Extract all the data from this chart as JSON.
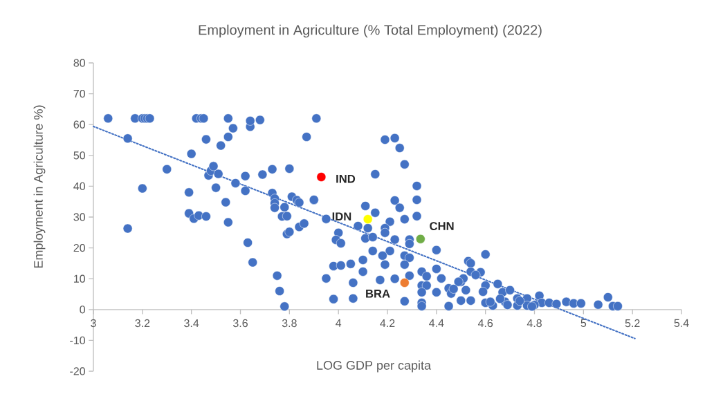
{
  "chart_data": {
    "type": "scatter",
    "title": "Employment in Agriculture (% Total Employment) (2022)",
    "xlabel": "LOG GDP per capita",
    "ylabel": "Employment in Agriculture %)",
    "xlim": [
      3,
      5.4
    ],
    "ylim": [
      -20,
      80
    ],
    "xticks": [
      3,
      3.2,
      3.4,
      3.6,
      3.8,
      4,
      4.2,
      4.4,
      4.6,
      4.8,
      5,
      5.2,
      5.4
    ],
    "yticks": [
      -20,
      -10,
      0,
      10,
      20,
      30,
      40,
      50,
      60,
      70,
      80
    ],
    "marker": "circle",
    "series": [
      {
        "color": "#4472c4",
        "x": [
          3.06,
          3.14,
          3.14,
          3.17,
          3.2,
          3.21,
          3.22,
          3.23,
          3.2,
          3.3,
          3.39,
          3.39,
          3.4,
          3.41,
          3.42,
          3.44,
          3.45,
          3.43,
          3.46,
          3.46,
          3.47,
          3.48,
          3.49,
          3.5,
          3.51,
          3.52,
          3.54,
          3.55,
          3.55,
          3.55,
          3.57,
          3.58,
          3.62,
          3.62,
          3.63,
          3.64,
          3.64,
          3.65,
          3.68,
          3.69,
          3.73,
          3.73,
          3.74,
          3.74,
          3.74,
          3.75,
          3.76,
          3.77,
          3.78,
          3.79,
          3.79,
          3.78,
          3.8,
          3.8,
          3.81,
          3.83,
          3.84,
          3.84,
          3.86,
          3.87,
          3.9,
          3.91,
          4.15,
          4.19,
          4.23,
          4.25,
          4.27,
          4.32,
          4.32,
          4.32,
          4.23,
          4.25,
          4.27,
          4.15,
          4.11,
          4.21,
          4.08,
          4.12,
          4.19,
          4.19,
          3.95,
          3.9,
          4.0,
          3.99,
          4.01,
          4.11,
          4.14,
          4.23,
          4.29,
          4.29,
          4.4,
          4.14,
          4.21,
          4.18,
          4.27,
          4.29,
          4.1,
          4.19,
          4.27,
          3.98,
          4.01,
          4.05,
          4.1,
          4.34,
          4.4,
          3.95,
          4.06,
          4.17,
          4.23,
          4.29,
          4.36,
          4.42,
          4.34,
          4.36,
          4.34,
          4.4,
          3.98,
          4.06,
          4.27,
          4.34,
          4.34,
          4.45,
          4.45,
          4.5,
          4.5,
          4.46,
          4.6,
          4.53,
          4.54,
          4.54,
          4.58,
          4.56,
          4.51,
          4.49,
          4.47,
          4.52,
          4.6,
          4.59,
          4.65,
          4.54,
          4.6,
          4.63,
          4.67,
          4.7,
          4.68,
          4.73,
          4.73,
          4.77,
          4.77,
          4.82,
          4.83,
          4.86,
          4.89,
          4.93,
          4.96,
          4.99,
          5.06,
          5.1,
          5.12,
          5.14,
          4.62,
          4.66,
          4.69,
          4.74,
          4.8,
          4.79
        ],
        "values": [
          62,
          55.5,
          26.3,
          62,
          62,
          62,
          62,
          62,
          39.3,
          45.5,
          31.2,
          38,
          50.5,
          29.5,
          62,
          62,
          62,
          30.5,
          30.2,
          55.2,
          43.5,
          45,
          46.5,
          39.5,
          44,
          53.2,
          34.8,
          56,
          62,
          28.3,
          58.8,
          41,
          38.5,
          43.3,
          21.7,
          59.3,
          61.2,
          15.3,
          61.5,
          43.8,
          45.5,
          37.8,
          36,
          34.5,
          33,
          11,
          6,
          30.2,
          33.2,
          30.3,
          24.5,
          1,
          45.7,
          25.2,
          36.6,
          35.5,
          34.7,
          26.8,
          27.9,
          56,
          35.5,
          62,
          43.9,
          55.1,
          55.6,
          52.4,
          47.1,
          40.1,
          35.6,
          30.3,
          35.4,
          33,
          29.3,
          31.4,
          33.6,
          28.5,
          27.1,
          26.4,
          26.4,
          24.9,
          29.4,
          35.6,
          24.9,
          22.6,
          21.5,
          23.1,
          23.5,
          22.7,
          22.7,
          21.3,
          19.3,
          19,
          19,
          17.5,
          17.5,
          16.8,
          16.1,
          14.6,
          14.6,
          14.1,
          14.3,
          14.8,
          12.3,
          12.3,
          13.2,
          10.1,
          8.7,
          9.6,
          10,
          11,
          10.8,
          10.1,
          7.8,
          7.8,
          5.6,
          5.6,
          3.4,
          3.6,
          2.7,
          2.2,
          1.1,
          1.1,
          6.9,
          2.9,
          9,
          5.2,
          17.9,
          15.7,
          15,
          12.3,
          12.1,
          11.2,
          10.1,
          9,
          6.7,
          6.3,
          7.8,
          5.8,
          8.3,
          2.9,
          2.2,
          1.3,
          5.6,
          6.3,
          2.5,
          3.6,
          1.3,
          3.6,
          1.3,
          4.5,
          2.2,
          2.2,
          1.8,
          2.5,
          2,
          2,
          1.6,
          4,
          1.1,
          1.1,
          2.5,
          3.5,
          1.5,
          2.8,
          1.5,
          1
        ]
      },
      {
        "name": "IND",
        "color": "#ff0000",
        "x": [
          3.93
        ],
        "values": [
          43.0
        ]
      },
      {
        "name": "IDN",
        "color": "#ffff00",
        "x": [
          4.12
        ],
        "values": [
          29.3
        ]
      },
      {
        "name": "CHN",
        "color": "#70ad47",
        "x": [
          4.335
        ],
        "values": [
          22.9
        ]
      },
      {
        "name": "BRA",
        "color": "#ed7d31",
        "x": [
          4.27
        ],
        "values": [
          8.7
        ]
      },
      {
        "type": "line",
        "line_style": "dotted",
        "marker": "none",
        "color": "#4472c4",
        "x": [
          3,
          5.21
        ],
        "values": [
          59.4,
          -9.4
        ]
      }
    ]
  }
}
